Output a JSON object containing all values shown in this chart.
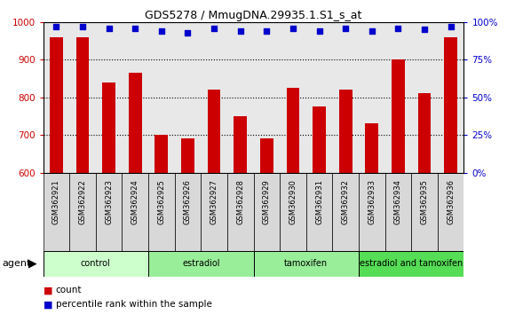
{
  "title": "GDS5278 / MmugDNA.29935.1.S1_s_at",
  "samples": [
    "GSM362921",
    "GSM362922",
    "GSM362923",
    "GSM362924",
    "GSM362925",
    "GSM362926",
    "GSM362927",
    "GSM362928",
    "GSM362929",
    "GSM362930",
    "GSM362931",
    "GSM362932",
    "GSM362933",
    "GSM362934",
    "GSM362935",
    "GSM362936"
  ],
  "counts": [
    960,
    960,
    840,
    865,
    700,
    690,
    820,
    750,
    690,
    825,
    775,
    820,
    730,
    900,
    810,
    960
  ],
  "percentile_ranks": [
    97,
    97,
    96,
    96,
    94,
    93,
    96,
    94,
    94,
    96,
    94,
    96,
    94,
    96,
    95,
    97
  ],
  "ylim_left": [
    600,
    1000
  ],
  "ylim_right": [
    0,
    100
  ],
  "yticks_left": [
    600,
    700,
    800,
    900,
    1000
  ],
  "yticks_right": [
    0,
    25,
    50,
    75,
    100
  ],
  "groups": [
    {
      "label": "control",
      "start": 0,
      "end": 4,
      "color": "#ccffcc"
    },
    {
      "label": "estradiol",
      "start": 4,
      "end": 8,
      "color": "#99ee99"
    },
    {
      "label": "tamoxifen",
      "start": 8,
      "end": 12,
      "color": "#99ee99"
    },
    {
      "label": "estradiol and tamoxifen",
      "start": 12,
      "end": 16,
      "color": "#66dd66"
    }
  ],
  "bar_color": "#cc0000",
  "dot_color": "#0000cc",
  "bar_width": 0.5,
  "plot_bg_color": "#e8e8e8",
  "grid_color": "#000000",
  "left_label_color": "#cc0000",
  "right_label_color": "#0000cc",
  "agent_label": "agent",
  "legend_count": "count",
  "legend_percentile": "percentile rank within the sample"
}
